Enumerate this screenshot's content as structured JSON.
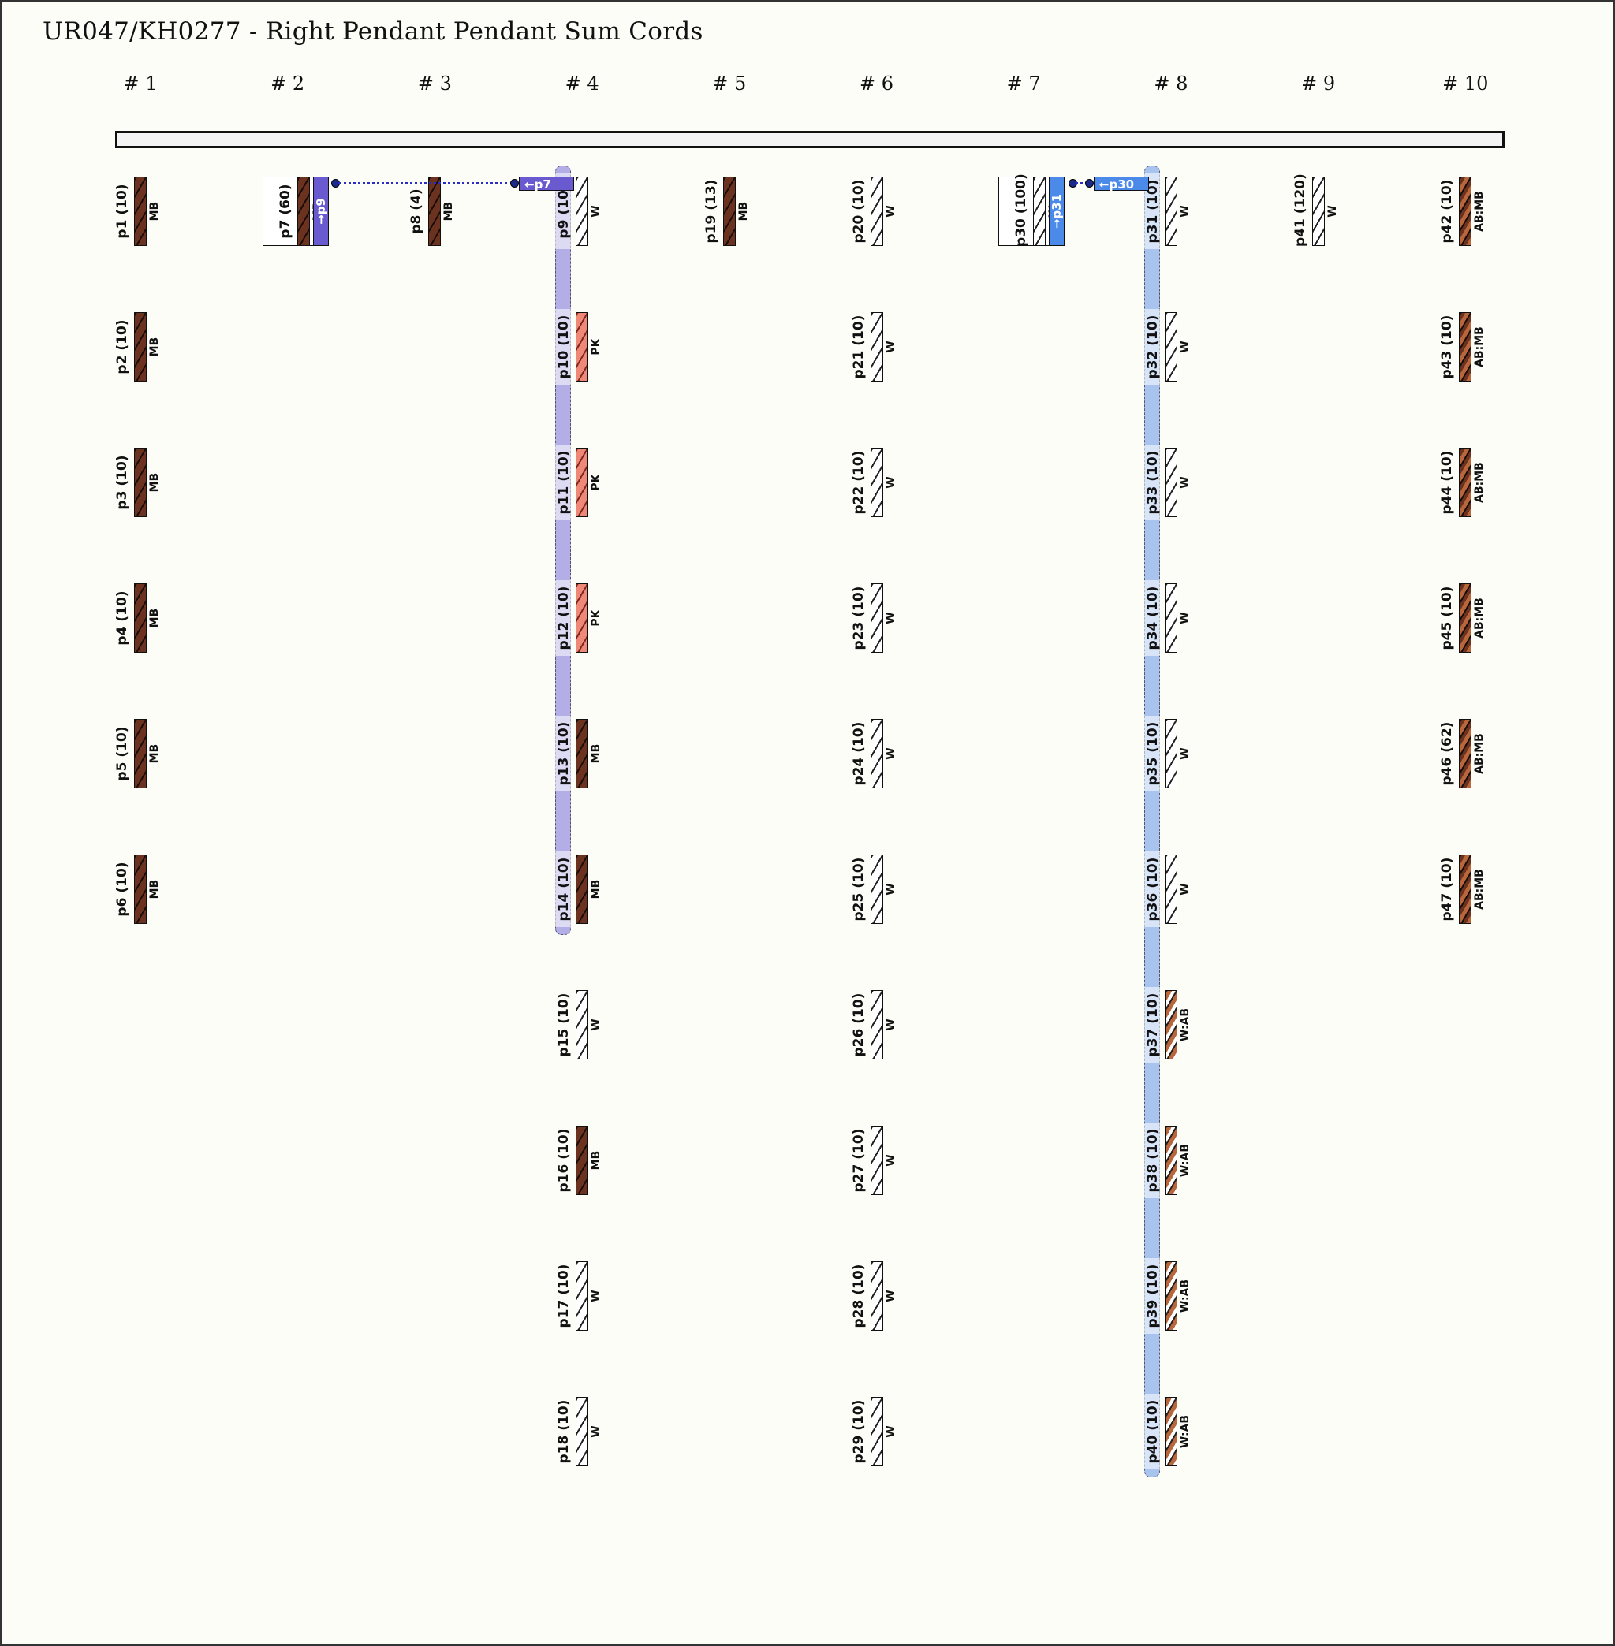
{
  "title": "UR047/KH0277 - Right Pendant Pendant Sum Cords",
  "groups": [
    "# 1",
    "# 2",
    "# 3",
    "# 4",
    "# 5",
    "# 6",
    "# 7",
    "# 8",
    "# 9",
    "# 10"
  ],
  "colors": {
    "MB": "#6b3220",
    "W": "#ffffff",
    "PK": "#f08878",
    "AB": "#b8663c",
    "sum_p9": "#6a5ad0",
    "sum_p31": "#4b8ae8",
    "band_p9": "#b4aee6",
    "band_p31": "#a8c4ee"
  },
  "cords": [
    {
      "id": "p1",
      "count": "10",
      "color": "MB",
      "group": 1,
      "row": 0
    },
    {
      "id": "p2",
      "count": "10",
      "color": "MB",
      "group": 1,
      "row": 1
    },
    {
      "id": "p3",
      "count": "10",
      "color": "MB",
      "group": 1,
      "row": 2
    },
    {
      "id": "p4",
      "count": "10",
      "color": "MB",
      "group": 1,
      "row": 3
    },
    {
      "id": "p5",
      "count": "10",
      "color": "MB",
      "group": 1,
      "row": 4
    },
    {
      "id": "p6",
      "count": "10",
      "color": "MB",
      "group": 1,
      "row": 5
    },
    {
      "id": "p7",
      "count": "60",
      "color": "MB",
      "group": 2,
      "row": 0
    },
    {
      "id": "p8",
      "count": "4",
      "color": "MB",
      "group": 3,
      "row": 0
    },
    {
      "id": "p9",
      "count": "10",
      "color": "W",
      "group": 4,
      "row": 0
    },
    {
      "id": "p10",
      "count": "10",
      "color": "PK",
      "group": 4,
      "row": 1
    },
    {
      "id": "p11",
      "count": "10",
      "color": "PK",
      "group": 4,
      "row": 2
    },
    {
      "id": "p12",
      "count": "10",
      "color": "PK",
      "group": 4,
      "row": 3
    },
    {
      "id": "p13",
      "count": "10",
      "color": "MB",
      "group": 4,
      "row": 4
    },
    {
      "id": "p14",
      "count": "10",
      "color": "MB",
      "group": 4,
      "row": 5
    },
    {
      "id": "p15",
      "count": "10",
      "color": "W",
      "group": 4,
      "row": 6
    },
    {
      "id": "p16",
      "count": "10",
      "color": "MB",
      "group": 4,
      "row": 7
    },
    {
      "id": "p17",
      "count": "10",
      "color": "W",
      "group": 4,
      "row": 8
    },
    {
      "id": "p18",
      "count": "10",
      "color": "W",
      "group": 4,
      "row": 9
    },
    {
      "id": "p19",
      "count": "13",
      "color": "MB",
      "group": 5,
      "row": 0
    },
    {
      "id": "p20",
      "count": "10",
      "color": "W",
      "group": 6,
      "row": 0
    },
    {
      "id": "p21",
      "count": "10",
      "color": "W",
      "group": 6,
      "row": 1
    },
    {
      "id": "p22",
      "count": "10",
      "color": "W",
      "group": 6,
      "row": 2
    },
    {
      "id": "p23",
      "count": "10",
      "color": "W",
      "group": 6,
      "row": 3
    },
    {
      "id": "p24",
      "count": "10",
      "color": "W",
      "group": 6,
      "row": 4
    },
    {
      "id": "p25",
      "count": "10",
      "color": "W",
      "group": 6,
      "row": 5
    },
    {
      "id": "p26",
      "count": "10",
      "color": "W",
      "group": 6,
      "row": 6
    },
    {
      "id": "p27",
      "count": "10",
      "color": "W",
      "group": 6,
      "row": 7
    },
    {
      "id": "p28",
      "count": "10",
      "color": "W",
      "group": 6,
      "row": 8
    },
    {
      "id": "p29",
      "count": "10",
      "color": "W",
      "group": 6,
      "row": 9
    },
    {
      "id": "p30",
      "count": "100",
      "color": "W",
      "group": 7,
      "row": 0
    },
    {
      "id": "p31",
      "count": "10",
      "color": "W",
      "group": 8,
      "row": 0
    },
    {
      "id": "p32",
      "count": "10",
      "color": "W",
      "group": 8,
      "row": 1
    },
    {
      "id": "p33",
      "count": "10",
      "color": "W",
      "group": 8,
      "row": 2
    },
    {
      "id": "p34",
      "count": "10",
      "color": "W",
      "group": 8,
      "row": 3
    },
    {
      "id": "p35",
      "count": "10",
      "color": "W",
      "group": 8,
      "row": 4
    },
    {
      "id": "p36",
      "count": "10",
      "color": "W",
      "group": 8,
      "row": 5
    },
    {
      "id": "p37",
      "count": "10",
      "color": "W:AB",
      "group": 8,
      "row": 6
    },
    {
      "id": "p38",
      "count": "10",
      "color": "W:AB",
      "group": 8,
      "row": 7
    },
    {
      "id": "p39",
      "count": "10",
      "color": "W:AB",
      "group": 8,
      "row": 8
    },
    {
      "id": "p40",
      "count": "10",
      "color": "W:AB",
      "group": 8,
      "row": 9
    },
    {
      "id": "p41",
      "count": "120",
      "color": "W",
      "group": 9,
      "row": 0
    },
    {
      "id": "p42",
      "count": "10",
      "color": "AB:MB",
      "group": 10,
      "row": 0
    },
    {
      "id": "p43",
      "count": "10",
      "color": "AB:MB",
      "group": 10,
      "row": 1
    },
    {
      "id": "p44",
      "count": "10",
      "color": "AB:MB",
      "group": 10,
      "row": 2
    },
    {
      "id": "p45",
      "count": "10",
      "color": "AB:MB",
      "group": 10,
      "row": 3
    },
    {
      "id": "p46",
      "count": "62",
      "color": "AB:MB",
      "group": 10,
      "row": 4
    },
    {
      "id": "p47",
      "count": "10",
      "color": "AB:MB",
      "group": 10,
      "row": 5
    }
  ],
  "sum_links": [
    {
      "from": "p7",
      "to": "p9",
      "from_label": "→p9",
      "to_label": "←p7"
    },
    {
      "from": "p30",
      "to": "p31",
      "from_label": "→p31",
      "to_label": "←p30"
    }
  ]
}
